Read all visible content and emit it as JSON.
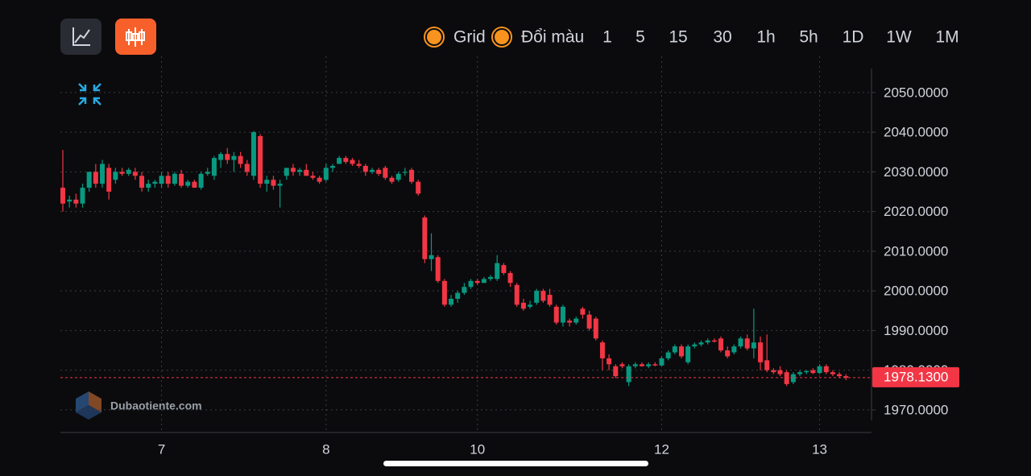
{
  "toolbar": {
    "toggles": [
      "Grid",
      "Đổi màu"
    ],
    "intervals": [
      "1",
      "5",
      "15",
      "30",
      "1h",
      "5h",
      "1D",
      "1W",
      "1M"
    ],
    "active_interval": 4
  },
  "watermark": "Dubaotiente.com",
  "chart_data": {
    "type": "candlestick",
    "ylim": [
      1964.3,
      2059.1
    ],
    "yticks": [
      {
        "value": 1970,
        "label": "1970.0000"
      },
      {
        "value": 1980,
        "label": "1980.0000"
      },
      {
        "value": 1990,
        "label": "1990.0000"
      },
      {
        "value": 2000,
        "label": "2000.0000"
      },
      {
        "value": 2010,
        "label": "2010.0000"
      },
      {
        "value": 2020,
        "label": "2020.0000"
      },
      {
        "value": 2030,
        "label": "2030.0000"
      },
      {
        "value": 2040,
        "label": "2040.0000"
      },
      {
        "value": 2050,
        "label": "2050.0000"
      }
    ],
    "xticks": [
      {
        "value": 15,
        "label": "7"
      },
      {
        "value": 40,
        "label": "8"
      },
      {
        "value": 63,
        "label": "10"
      },
      {
        "value": 91,
        "label": "12"
      },
      {
        "value": 115,
        "label": "13"
      }
    ],
    "grid": true,
    "up_color": "#089981",
    "down_color": "#f23645",
    "last_price": 1978.13,
    "last_price_label": "1978.1300",
    "ohlc": [
      [
        2026,
        2035.5,
        2020,
        2022
      ],
      [
        2022.5,
        2024,
        2021,
        2023
      ],
      [
        2023,
        2024.5,
        2021,
        2022
      ],
      [
        2022,
        2027,
        2021,
        2026
      ],
      [
        2026,
        2030,
        2025,
        2030
      ],
      [
        2030,
        2032,
        2026,
        2027
      ],
      [
        2027,
        2033,
        2026,
        2032
      ],
      [
        2031,
        2032,
        2023,
        2025
      ],
      [
        2028,
        2031,
        2027,
        2030
      ],
      [
        2030,
        2031,
        2029,
        2029.5
      ],
      [
        2029.5,
        2031,
        2029,
        2030.5
      ],
      [
        2030,
        2031,
        2028,
        2029
      ],
      [
        2029,
        2030,
        2025,
        2026
      ],
      [
        2026,
        2028,
        2025,
        2027
      ],
      [
        2027,
        2028,
        2026,
        2027.5
      ],
      [
        2027,
        2030,
        2026,
        2029
      ],
      [
        2029,
        2030,
        2026,
        2027
      ],
      [
        2027,
        2030,
        2026.5,
        2029.5
      ],
      [
        2029.5,
        2030.5,
        2026,
        2026.5
      ],
      [
        2026.5,
        2028,
        2026,
        2027.5
      ],
      [
        2027.5,
        2028,
        2026,
        2026
      ],
      [
        2026,
        2030,
        2025.5,
        2029.5
      ],
      [
        2029.5,
        2031,
        2029,
        2030
      ],
      [
        2029,
        2034,
        2028,
        2033.5
      ],
      [
        2033,
        2035,
        2031,
        2034.5
      ],
      [
        2034.5,
        2036,
        2032,
        2033
      ],
      [
        2033,
        2035,
        2030,
        2034
      ],
      [
        2034,
        2035,
        2031,
        2032
      ],
      [
        2032,
        2033,
        2029,
        2030
      ],
      [
        2029,
        2040.3,
        2028,
        2040
      ],
      [
        2039,
        2039.5,
        2026,
        2027
      ],
      [
        2027,
        2029,
        2025,
        2028
      ],
      [
        2028,
        2029,
        2025.5,
        2026.5
      ],
      [
        2026.5,
        2028,
        2021,
        2027
      ],
      [
        2029,
        2031,
        2028,
        2031
      ],
      [
        2031,
        2032,
        2029,
        2030
      ],
      [
        2030,
        2031,
        2029,
        2030.5
      ],
      [
        2030.5,
        2032,
        2029,
        2029
      ],
      [
        2029,
        2030,
        2028,
        2028.5
      ],
      [
        2028.5,
        2029,
        2027,
        2027.5
      ],
      [
        2028,
        2032,
        2027.5,
        2031
      ],
      [
        2031,
        2032,
        2030,
        2031.5
      ],
      [
        2032,
        2034,
        2032,
        2033.5
      ],
      [
        2033.5,
        2034,
        2032,
        2032.5
      ],
      [
        2033,
        2033.5,
        2031.5,
        2032
      ],
      [
        2032,
        2033,
        2031,
        2031.5
      ],
      [
        2031.5,
        2032,
        2029,
        2030
      ],
      [
        2030,
        2031,
        2029.5,
        2030.5
      ],
      [
        2030.5,
        2031,
        2029,
        2029.5
      ],
      [
        2031,
        2031.5,
        2028,
        2028.5
      ],
      [
        2028.5,
        2029,
        2027,
        2027.5
      ],
      [
        2028,
        2030,
        2027.5,
        2029.5
      ],
      [
        2030,
        2031,
        2029,
        2030
      ],
      [
        2030.5,
        2031,
        2027,
        2027.5
      ],
      [
        2027.5,
        2028,
        2024,
        2024.5
      ],
      [
        2018.5,
        2019,
        2007,
        2008
      ],
      [
        2008,
        2014.5,
        2005,
        2009
      ],
      [
        2008.5,
        2009,
        2002,
        2002.5
      ],
      [
        2002.5,
        2003,
        1996,
        1996.5
      ],
      [
        1996.5,
        1999,
        1996,
        1998
      ],
      [
        1998,
        2000,
        1997,
        1999.5
      ],
      [
        1999.5,
        2002,
        1999,
        2001
      ],
      [
        2001,
        2003,
        2000.5,
        2002.5
      ],
      [
        2002.5,
        2003,
        2001.5,
        2002
      ],
      [
        2002,
        2003.5,
        2002,
        2003
      ],
      [
        2003,
        2004,
        2002.5,
        2003.5
      ],
      [
        2003,
        2009,
        2002.5,
        2007
      ],
      [
        2006.5,
        2007,
        2004,
        2004.5
      ],
      [
        2004.5,
        2005,
        2001,
        2002
      ],
      [
        2001.5,
        2002,
        1996,
        1996.5
      ],
      [
        1997,
        1998,
        1995,
        1995.5
      ],
      [
        1996,
        1997.5,
        1995.5,
        1996.5
      ],
      [
        1997,
        2000.5,
        1996.5,
        2000
      ],
      [
        2000,
        2000.5,
        1997,
        1997.5
      ],
      [
        1999,
        2000.5,
        1996,
        1996.5
      ],
      [
        1996,
        1996.5,
        1991.5,
        1992
      ],
      [
        1992,
        1996.5,
        1991,
        1996
      ],
      [
        1992.5,
        1993,
        1991,
        1992
      ],
      [
        1992,
        1993.5,
        1991.5,
        1993
      ],
      [
        1995.5,
        1996,
        1993,
        1994
      ],
      [
        1994,
        1995,
        1990,
        1990.5
      ],
      [
        1993,
        1993.5,
        1987.5,
        1988
      ],
      [
        1987,
        1987.5,
        1980,
        1983
      ],
      [
        1983,
        1984,
        1980,
        1981.5
      ],
      [
        1981,
        1981.5,
        1978,
        1978.5
      ],
      [
        1981.5,
        1982,
        1980.5,
        1981
      ],
      [
        1977,
        1981.5,
        1976,
        1981
      ],
      [
        1981,
        1982,
        1980.5,
        1981.5
      ],
      [
        1981.5,
        1982,
        1981,
        1981
      ],
      [
        1981,
        1982,
        1980.5,
        1981.5
      ],
      [
        1981.5,
        1982,
        1981,
        1981.2
      ],
      [
        1981.2,
        1983.5,
        1981,
        1983
      ],
      [
        1983,
        1985,
        1982.5,
        1984.5
      ],
      [
        1984.5,
        1986.5,
        1984,
        1986
      ],
      [
        1986,
        1986.5,
        1983,
        1983.5
      ],
      [
        1982,
        1986.5,
        1981.5,
        1986
      ],
      [
        1986,
        1987,
        1985.5,
        1986.5
      ],
      [
        1986.5,
        1987.5,
        1986,
        1987
      ],
      [
        1987,
        1988,
        1986.5,
        1987.5
      ],
      [
        1987.5,
        1988,
        1987,
        1987.2
      ],
      [
        1988,
        1988.5,
        1984.5,
        1985
      ],
      [
        1985,
        1986,
        1983,
        1983.5
      ],
      [
        1984.5,
        1986.5,
        1984,
        1986
      ],
      [
        1986,
        1988.5,
        1985.5,
        1988
      ],
      [
        1988,
        1989,
        1985,
        1985.5
      ],
      [
        1985.5,
        1995.5,
        1983,
        1987
      ],
      [
        1987,
        1988.5,
        1980,
        1982
      ],
      [
        1982.5,
        1989,
        1979.5,
        1980
      ],
      [
        1980,
        1980.5,
        1979,
        1979.5
      ],
      [
        1980,
        1981,
        1978.5,
        1979
      ],
      [
        1979.5,
        1980,
        1976,
        1976.5
      ],
      [
        1977,
        1979.5,
        1976.5,
        1979
      ],
      [
        1979,
        1980,
        1978.5,
        1979.5
      ],
      [
        1979.5,
        1980,
        1979,
        1979.8
      ],
      [
        1980,
        1980.5,
        1979,
        1979.3
      ],
      [
        1979.3,
        1981.5,
        1979,
        1981
      ],
      [
        1981,
        1981.5,
        1979,
        1979.5
      ],
      [
        1979.5,
        1980,
        1978.5,
        1979
      ],
      [
        1979,
        1979.5,
        1978,
        1978.5
      ],
      [
        1978.5,
        1979,
        1977.5,
        1978.13
      ]
    ]
  }
}
